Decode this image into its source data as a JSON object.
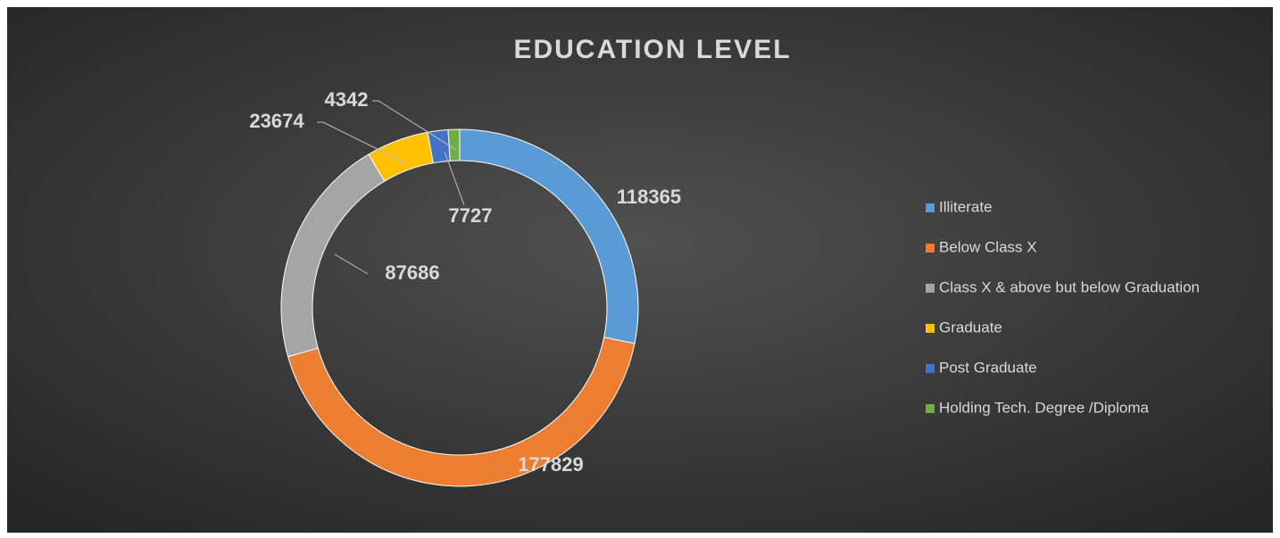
{
  "chart_data": {
    "type": "donut",
    "title": "EDUCATION LEVEL",
    "categories": [
      "Illiterate",
      "Below Class X",
      "Class X & above but below Graduation",
      "Graduate",
      "Post Graduate",
      "Holding Tech. Degree /Diploma"
    ],
    "values": [
      118365,
      177829,
      87686,
      23674,
      7727,
      4342
    ],
    "colors": [
      "#5b9bd5",
      "#ed7d31",
      "#a5a5a5",
      "#ffc000",
      "#4472c4",
      "#70ad47"
    ],
    "legend": "right"
  }
}
